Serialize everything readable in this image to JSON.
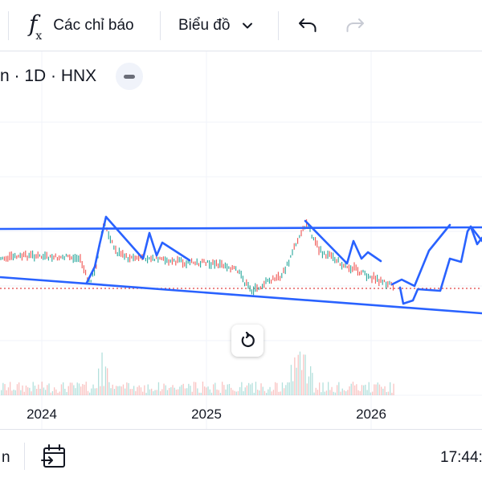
{
  "toolbar": {
    "indicators_label": "Các chỉ báo",
    "chart_type_label": "Biểu đồ"
  },
  "symbol": {
    "text": "n · 1D · HNX"
  },
  "chart_data": {
    "type": "line",
    "x_labels": [
      "2024",
      "2025",
      "2026"
    ],
    "colors": {
      "price_up": "#26a69a",
      "price_down": "#ef5350",
      "drawing": "#2962ff",
      "price_line": "#e04040"
    }
  },
  "bottom": {
    "left_text": "n",
    "time": "17:44:"
  }
}
